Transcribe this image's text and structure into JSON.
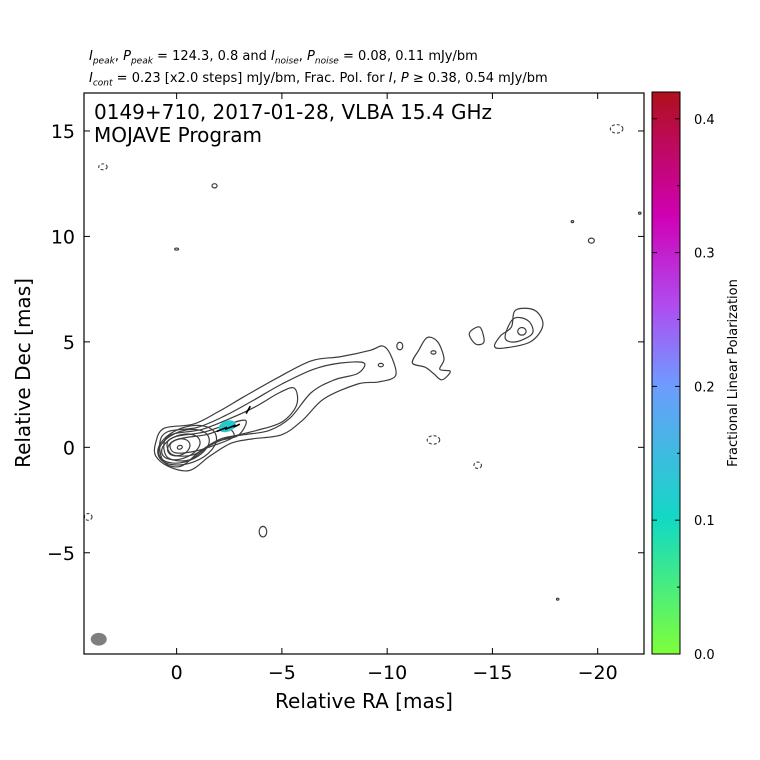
{
  "header": {
    "line1": {
      "ipeak_val": "124.3",
      "ppeak_val": "0.8",
      "inoise_val": "0.08",
      "pnoise_val": "0.11",
      "unit": "mJy/bm"
    },
    "line2": {
      "cont_val": "0.23",
      "steps": "[x2.0 steps]",
      "unit": "mJy/bm",
      "fracpol_text": "Frac. Pol. for",
      "i_thresh": "0.38",
      "p_thresh": "0.54"
    }
  },
  "chart_data": {
    "type": "contour",
    "title_line1": "0149+710, 2017-01-28, VLBA 15.4 GHz",
    "title_line2": "MOJAVE Program",
    "xlabel": "Relative RA [mas]",
    "ylabel": "Relative Dec [mas]",
    "xlim": [
      4.4,
      -22.2
    ],
    "ylim": [
      -9.8,
      16.8
    ],
    "xticks": [
      0,
      -5,
      -10,
      -15,
      -20
    ],
    "xtick_labels": [
      "0",
      "−5",
      "−10",
      "−15",
      "−20"
    ],
    "yticks": [
      -5,
      0,
      5,
      10,
      15
    ],
    "ytick_labels": [
      "−5",
      "0",
      "5",
      "10",
      "15"
    ],
    "colorbar": {
      "label": "Fractional Linear Polarization",
      "range": [
        0.0,
        0.42
      ],
      "ticks": [
        0.0,
        0.1,
        0.2,
        0.3,
        0.4
      ],
      "tick_labels": [
        "0.0",
        "0.1",
        "0.2",
        "0.3",
        "0.4"
      ],
      "colors": [
        "#7fff3a",
        "#12d9c4",
        "#6e9bff",
        "#b04cf0",
        "#d000b4",
        "#b0101c"
      ]
    },
    "contour_levels_mjy": [
      0.23,
      0.46,
      0.92,
      1.84,
      3.68,
      7.36,
      14.72,
      29.44,
      58.88,
      117.76
    ],
    "core_contours": [
      {
        "cx": -0.15,
        "cy": 0.0,
        "rx": 0.12,
        "ry": 0.09,
        "angle": -20
      },
      {
        "cx": -0.1,
        "cy": 0.0,
        "rx": 0.55,
        "ry": 0.38,
        "angle": -20
      },
      {
        "cx": -0.2,
        "cy": 0.02,
        "rx": 0.95,
        "ry": 0.55,
        "angle": -20
      },
      {
        "cx": -0.35,
        "cy": 0.05,
        "rx": 1.25,
        "ry": 0.72,
        "angle": -20
      },
      {
        "cx": -0.5,
        "cy": 0.1,
        "rx": 1.45,
        "ry": 0.85,
        "angle": -20
      }
    ],
    "jet_contours": [
      [
        [
          1.0,
          0.2
        ],
        [
          0.6,
          0.9
        ],
        [
          -0.8,
          1.1
        ],
        [
          -2.0,
          1.7
        ],
        [
          -3.2,
          2.4
        ],
        [
          -4.8,
          3.3
        ],
        [
          -6.4,
          4.1
        ],
        [
          -7.8,
          4.3
        ],
        [
          -9.2,
          4.6
        ],
        [
          -9.8,
          4.8
        ],
        [
          -10.2,
          4.3
        ],
        [
          -10.4,
          3.4
        ],
        [
          -9.6,
          3.1
        ],
        [
          -8.6,
          3.0
        ],
        [
          -7.0,
          2.3
        ],
        [
          -6.0,
          1.3
        ],
        [
          -5.0,
          0.6
        ],
        [
          -3.6,
          0.4
        ],
        [
          -2.6,
          0.2
        ],
        [
          -1.6,
          -0.4
        ],
        [
          -0.6,
          -1.1
        ],
        [
          0.4,
          -0.9
        ],
        [
          1.0,
          -0.4
        ]
      ],
      [
        [
          0.8,
          0.2
        ],
        [
          0.4,
          0.75
        ],
        [
          -1.0,
          0.95
        ],
        [
          -2.3,
          1.5
        ],
        [
          -3.6,
          2.2
        ],
        [
          -5.0,
          3.0
        ],
        [
          -6.5,
          3.7
        ],
        [
          -7.8,
          4.0
        ],
        [
          -8.9,
          4.0
        ],
        [
          -8.6,
          3.5
        ],
        [
          -7.5,
          3.2
        ],
        [
          -6.4,
          2.6
        ],
        [
          -5.4,
          1.4
        ],
        [
          -4.4,
          0.8
        ],
        [
          -3.2,
          0.6
        ],
        [
          -2.1,
          0.4
        ],
        [
          -1.1,
          -0.2
        ],
        [
          -0.2,
          -0.9
        ],
        [
          0.6,
          -0.7
        ]
      ],
      [
        [
          0.6,
          0.2
        ],
        [
          0.2,
          0.62
        ],
        [
          -1.2,
          0.85
        ],
        [
          -2.5,
          1.35
        ],
        [
          -3.7,
          1.9
        ],
        [
          -4.9,
          2.6
        ],
        [
          -5.6,
          2.8
        ],
        [
          -5.7,
          2.0
        ],
        [
          -5.0,
          1.2
        ],
        [
          -3.8,
          0.8
        ],
        [
          -2.6,
          0.5
        ],
        [
          -1.6,
          0.1
        ],
        [
          -0.6,
          -0.6
        ],
        [
          0.4,
          -0.5
        ]
      ],
      [
        [
          0.45,
          0.2
        ],
        [
          0.0,
          0.52
        ],
        [
          -1.3,
          0.72
        ],
        [
          -2.6,
          1.15
        ],
        [
          -3.3,
          1.25
        ],
        [
          -2.9,
          0.55
        ],
        [
          -1.8,
          0.25
        ],
        [
          -0.8,
          -0.35
        ],
        [
          0.2,
          -0.35
        ]
      ],
      [
        [
          0.3,
          0.15
        ],
        [
          -0.2,
          0.42
        ],
        [
          -1.4,
          0.6
        ],
        [
          -2.4,
          0.9
        ],
        [
          -2.7,
          0.5
        ],
        [
          -1.8,
          0.1
        ],
        [
          -0.8,
          -0.2
        ],
        [
          0.1,
          -0.25
        ]
      ],
      [
        [
          -11.9,
          5.2
        ],
        [
          -12.4,
          5.0
        ],
        [
          -12.7,
          4.2
        ],
        [
          -12.5,
          3.7
        ],
        [
          -13.0,
          3.6
        ],
        [
          -12.6,
          3.2
        ],
        [
          -12.2,
          3.5
        ],
        [
          -11.8,
          3.8
        ],
        [
          -11.2,
          4.0
        ],
        [
          -11.5,
          4.6
        ]
      ],
      [
        [
          -14.4,
          5.7
        ],
        [
          -14.6,
          5.0
        ],
        [
          -14.2,
          4.9
        ],
        [
          -13.9,
          5.4
        ]
      ],
      [
        [
          -16.1,
          6.5
        ],
        [
          -17.0,
          6.5
        ],
        [
          -17.4,
          5.8
        ],
        [
          -16.8,
          5.0
        ],
        [
          -15.5,
          4.7
        ],
        [
          -15.1,
          4.8
        ],
        [
          -15.4,
          5.3
        ],
        [
          -15.9,
          5.7
        ]
      ],
      [
        [
          -16.0,
          6.1
        ],
        [
          -16.7,
          6.0
        ],
        [
          -16.9,
          5.4
        ],
        [
          -16.1,
          5.0
        ],
        [
          -15.6,
          5.2
        ]
      ]
    ],
    "small_contours": [
      {
        "cx": -12.2,
        "cy": 4.5,
        "rx": 0.12,
        "ry": 0.08
      },
      {
        "cx": -16.4,
        "cy": 5.5,
        "rx": 0.2,
        "ry": 0.18
      },
      {
        "cx": -10.6,
        "cy": 4.8,
        "rx": 0.14,
        "ry": 0.18
      },
      {
        "cx": -9.7,
        "cy": 3.9,
        "rx": 0.12,
        "ry": 0.08
      },
      {
        "cx": -1.8,
        "cy": 12.4,
        "rx": 0.12,
        "ry": 0.1
      },
      {
        "cx": 0.0,
        "cy": 9.4,
        "rx": 0.09,
        "ry": 0.04
      },
      {
        "cx": -19.7,
        "cy": 9.8,
        "rx": 0.14,
        "ry": 0.12
      },
      {
        "cx": -18.8,
        "cy": 10.7,
        "rx": 0.04,
        "ry": 0.04
      },
      {
        "cx": -22.0,
        "cy": 11.1,
        "rx": 0.05,
        "ry": 0.05
      },
      {
        "cx": -4.1,
        "cy": -4.0,
        "rx": 0.18,
        "ry": 0.25
      },
      {
        "cx": -18.1,
        "cy": -7.2,
        "rx": 0.04,
        "ry": 0.03
      }
    ],
    "negative_contours": [
      {
        "cx": 3.5,
        "cy": 13.3,
        "rx": 0.2,
        "ry": 0.14
      },
      {
        "cx": -20.9,
        "cy": 15.1,
        "rx": 0.3,
        "ry": 0.2
      },
      {
        "cx": -12.2,
        "cy": 0.35,
        "rx": 0.3,
        "ry": 0.2
      },
      {
        "cx": -14.3,
        "cy": -0.85,
        "rx": 0.18,
        "ry": 0.15
      },
      {
        "cx": 4.2,
        "cy": -3.3,
        "rx": 0.18,
        "ry": 0.16
      }
    ],
    "polarization": {
      "center": [
        -2.4,
        1.0
      ],
      "rx": 0.42,
      "ry": 0.26,
      "angle": -20,
      "frac_pol": 0.13,
      "vectors": [
        [
          [
            -1.9,
            0.75
          ],
          [
            -2.4,
            0.95
          ]
        ],
        [
          [
            -2.3,
            0.85
          ],
          [
            -2.8,
            1.05
          ]
        ],
        [
          [
            -2.7,
            0.95
          ],
          [
            -3.0,
            1.1
          ]
        ],
        [
          [
            -3.3,
            1.6
          ],
          [
            -3.5,
            1.95
          ]
        ]
      ]
    },
    "beam": {
      "cx": 3.7,
      "cy": -9.1,
      "rx": 0.38,
      "ry": 0.3,
      "color": "#7f7f7f"
    }
  }
}
